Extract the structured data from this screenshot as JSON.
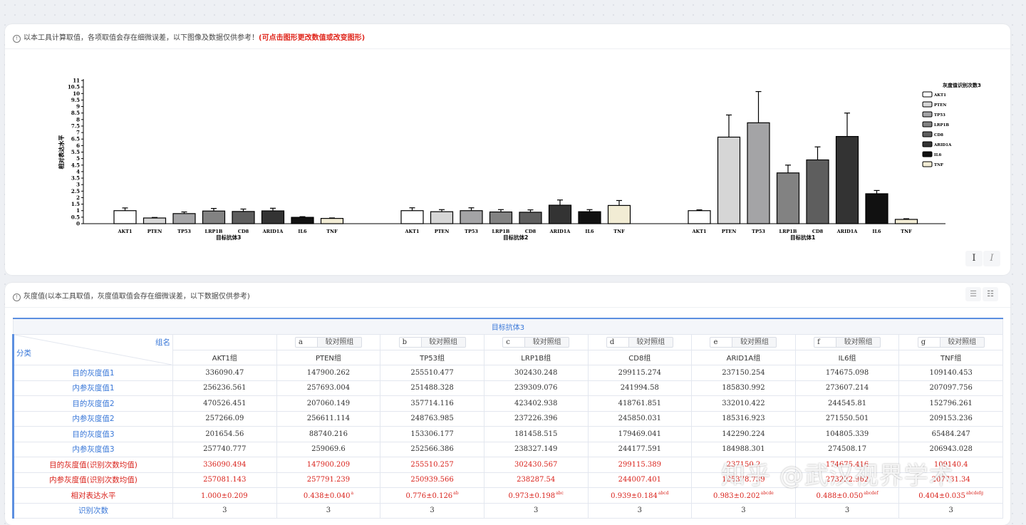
{
  "chart_panel": {
    "notice": "以本工具计算取值，各项取值会存在细微误差，以下图像及数据仅供参考！",
    "notice_warn": "(可点击图形更改数值或改变图形)",
    "bold_btn": "I",
    "italic_btn": "I"
  },
  "chart_data": {
    "type": "bar",
    "ylabel": "相对表达水平",
    "ylim": [
      0,
      11
    ],
    "yticks": [
      "0",
      "0.5",
      "1",
      "1.5",
      "2",
      "2.5",
      "3",
      "3.5",
      "4",
      "4.5",
      "5",
      "5.5",
      "6",
      "6.5",
      "7",
      "7.5",
      "8",
      "8.5",
      "9",
      "9.5",
      "10",
      "10.5",
      "11"
    ],
    "legend_title": "灰度值识别次数3",
    "categories": [
      "AKT1",
      "PTEN",
      "TP53",
      "LRP1B",
      "CD8",
      "ARID1A",
      "IL6",
      "TNF"
    ],
    "colors": [
      "#ffffff",
      "#d6d6d6",
      "#a4a4a6",
      "#828282",
      "#5e5e5e",
      "#333333",
      "#111111",
      "#f2ecd4"
    ],
    "groups": [
      {
        "name": "目标抗体3",
        "values": [
          1.0,
          0.438,
          0.776,
          0.973,
          0.939,
          0.983,
          0.488,
          0.404
        ],
        "errors": [
          0.209,
          0.04,
          0.126,
          0.198,
          0.184,
          0.202,
          0.05,
          0.035
        ]
      },
      {
        "name": "目标抗体2",
        "values": [
          1.0,
          0.92,
          1.0,
          0.9,
          0.88,
          1.42,
          0.92,
          1.4
        ],
        "errors": [
          0.22,
          0.16,
          0.22,
          0.18,
          0.18,
          0.4,
          0.16,
          0.38
        ]
      },
      {
        "name": "目标抗体1",
        "values": [
          1.0,
          6.65,
          7.75,
          3.9,
          4.9,
          6.7,
          2.3,
          0.33
        ],
        "errors": [
          0.06,
          1.7,
          2.4,
          0.6,
          1.0,
          1.8,
          0.25,
          0.05
        ]
      }
    ]
  },
  "table_panel": {
    "notice": "灰度值(以本工具取值，灰度值取值会存在细微误差，以下数据仅供参考)",
    "title": "目标抗体3",
    "corner_group": "组名",
    "corner_class": "分类",
    "control_label": "较对照组",
    "letters": [
      "a",
      "b",
      "c",
      "d",
      "e",
      "f",
      "g"
    ],
    "columns": [
      "AKT1组",
      "PTEN组",
      "TP53组",
      "LRP1B组",
      "CD8组",
      "ARID1A组",
      "IL6组",
      "TNF组"
    ],
    "rows": [
      {
        "label": "目的灰度值1",
        "cells": [
          "336090.47",
          "147900.262",
          "255510.477",
          "302430.248",
          "299115.274",
          "237150.254",
          "174675.098",
          "109140.453"
        ]
      },
      {
        "label": "内参灰度值1",
        "cells": [
          "256236.561",
          "257693.004",
          "251488.328",
          "239309.076",
          "241994.58",
          "185830.992",
          "273607.214",
          "207097.756"
        ]
      },
      {
        "label": "目的灰度值2",
        "cells": [
          "470526.451",
          "207060.149",
          "357714.116",
          "423402.938",
          "418761.851",
          "332010.422",
          "244545.81",
          "152796.261"
        ]
      },
      {
        "label": "内参灰度值2",
        "cells": [
          "257266.09",
          "256611.114",
          "248763.985",
          "237226.396",
          "245850.031",
          "185316.923",
          "271550.501",
          "209153.236"
        ]
      },
      {
        "label": "目的灰度值3",
        "cells": [
          "201654.56",
          "88740.216",
          "153306.177",
          "181458.515",
          "179469.041",
          "142290.224",
          "104805.339",
          "65484.247"
        ]
      },
      {
        "label": "内参灰度值3",
        "cells": [
          "257740.777",
          "259069.6",
          "252566.386",
          "238327.149",
          "244177.591",
          "184988.301",
          "274508.17",
          "206943.028"
        ]
      },
      {
        "label": "目的灰度值(识别次数均值)",
        "red": true,
        "cells": [
          "336090.494",
          "147900.209",
          "255510.257",
          "302430.567",
          "299115.389",
          "237150.2",
          "174675.416",
          "109140.4"
        ]
      },
      {
        "label": "内参灰度值(识别次数均值)",
        "red": true,
        "cells": [
          "257081.143",
          "257791.239",
          "250939.566",
          "238287.54",
          "244007.401",
          "185378.739",
          "273222.962",
          "207731.34"
        ]
      }
    ],
    "relative_row": {
      "label": "相对表达水平",
      "cells": [
        {
          "v": "1.000±0.209",
          "s": ""
        },
        {
          "v": "0.438±0.040",
          "s": "a"
        },
        {
          "v": "0.776±0.126",
          "s": "ab"
        },
        {
          "v": "0.973±0.198",
          "s": "abc"
        },
        {
          "v": "0.939±0.184",
          "s": "abcd"
        },
        {
          "v": "0.983±0.202",
          "s": "abcde"
        },
        {
          "v": "0.488±0.050",
          "s": "abcdef"
        },
        {
          "v": "0.404±0.035",
          "s": "abcdefg"
        }
      ]
    },
    "count_row": {
      "label": "识别次数",
      "cells": [
        "3",
        "3",
        "3",
        "3",
        "3",
        "3",
        "3",
        "3"
      ]
    }
  },
  "watermark": "知乎 @武汉视界学术"
}
